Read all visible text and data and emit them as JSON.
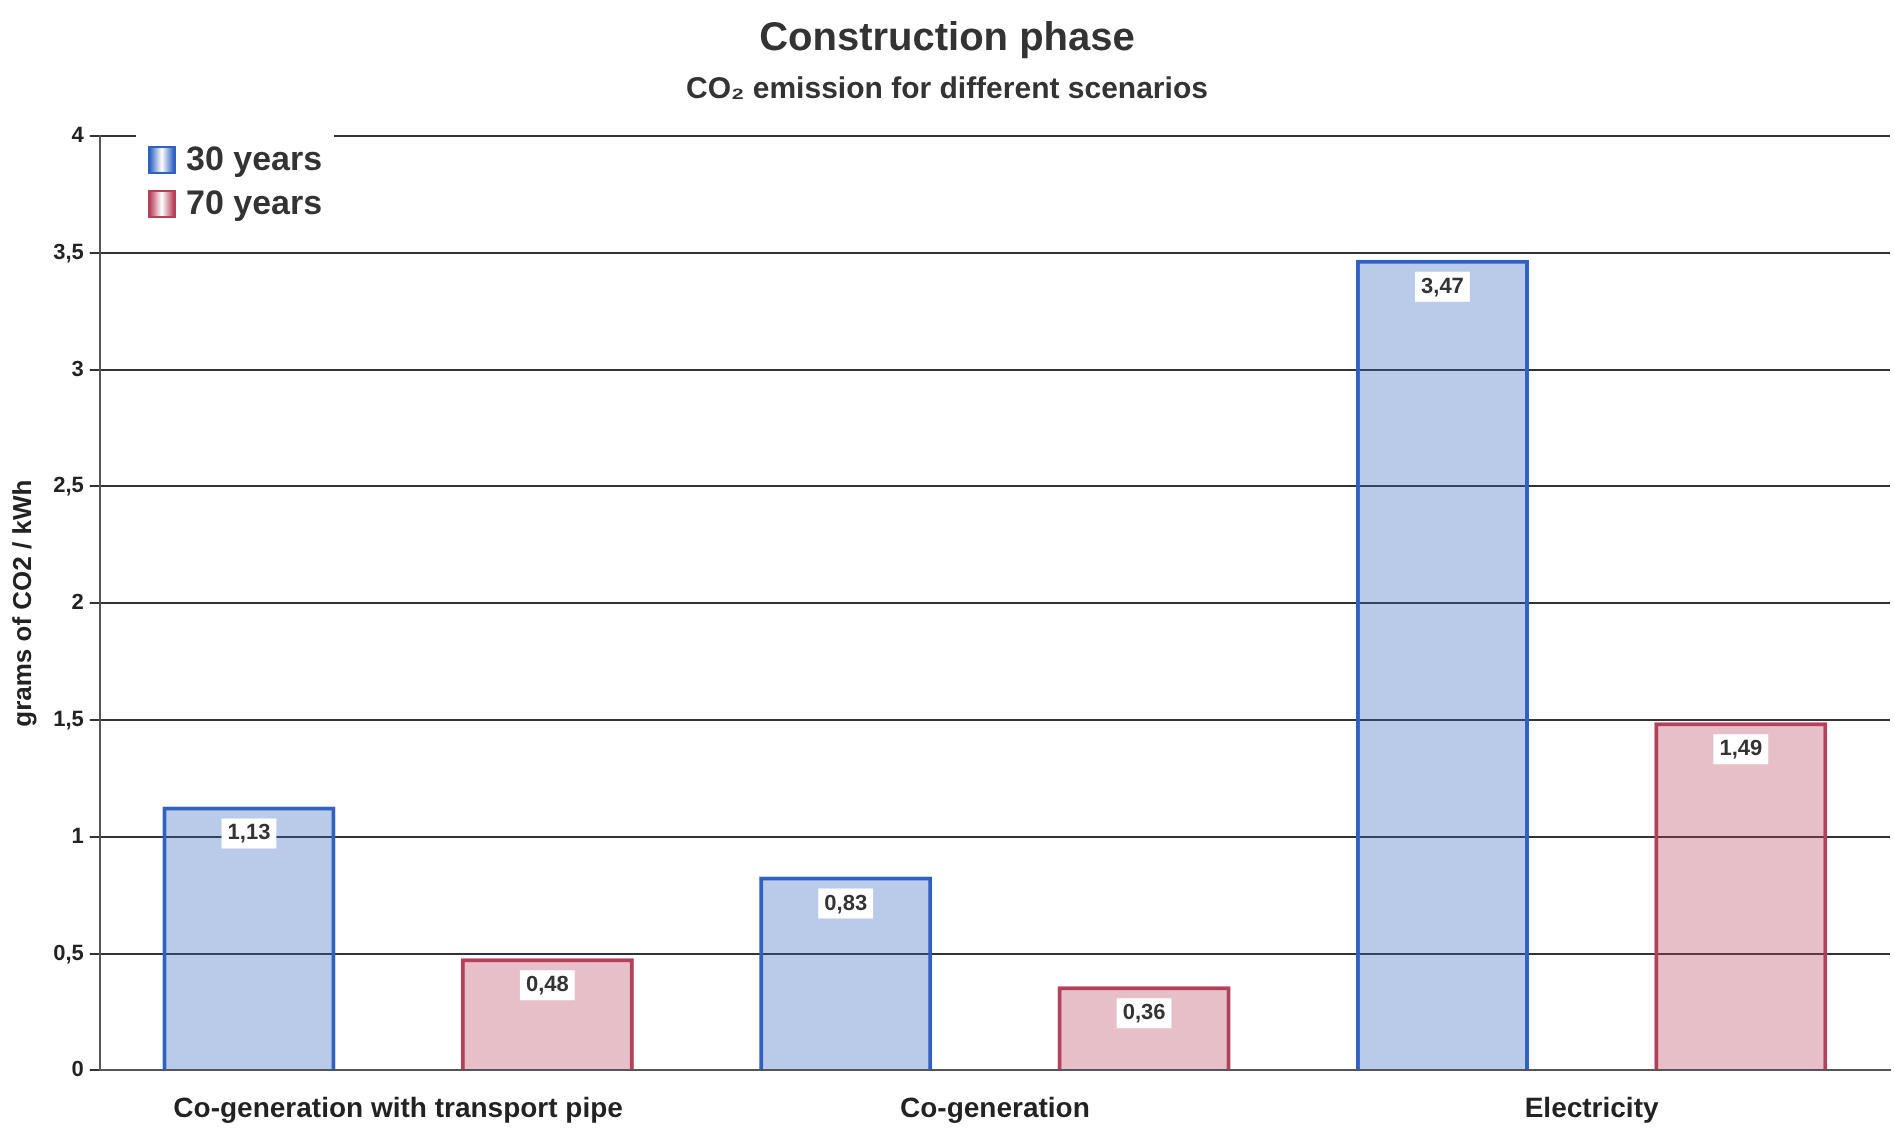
{
  "chart_data": {
    "type": "bar",
    "title": "Construction phase",
    "subtitle": "CO₂ emission for different scenarios",
    "ylabel": "grams of CO2 / kWh",
    "categories": [
      "Co-generation with transport pipe",
      "Co-generation",
      "Electricity"
    ],
    "series": [
      {
        "name": "30 years",
        "color": "#2f62c0",
        "values": [
          1.13,
          0.83,
          3.47
        ],
        "value_labels": [
          "1,13",
          "0,83",
          "3,47"
        ]
      },
      {
        "name": "70 years",
        "color": "#b5405a",
        "values": [
          0.48,
          0.36,
          1.49
        ],
        "value_labels": [
          "0,48",
          "0,36",
          "1,49"
        ]
      }
    ],
    "ylim": [
      0,
      4
    ],
    "yticks": [
      0,
      {
        "value": 0.5,
        "label": "0,5"
      },
      1,
      {
        "value": 1.5,
        "label": "1,5"
      },
      2,
      {
        "value": 2.5,
        "label": "2,5"
      },
      3,
      {
        "value": 3.5,
        "label": "3,5"
      },
      4
    ],
    "grid": "y",
    "legend": "top left"
  }
}
